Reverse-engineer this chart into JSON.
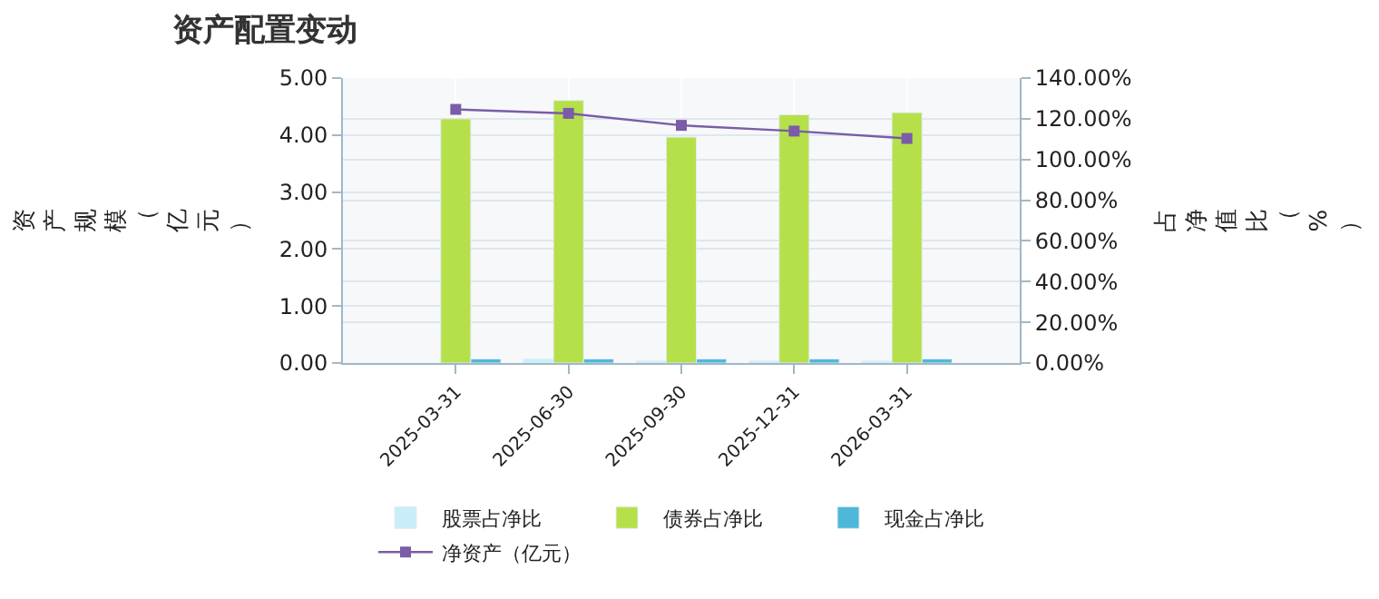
{
  "chart_data": {
    "type": "bar",
    "title": "资产配置变动",
    "ylabel": "资产规模（亿元）",
    "y2label": "占净值比（%）",
    "categories": [
      "2025-03-31",
      "2025-06-30",
      "2025-09-30",
      "2025-12-31",
      "2026-03-31"
    ],
    "series": [
      {
        "name": "股票占净比",
        "axis": "y2",
        "color": "#c9eefa",
        "values": [
          null,
          2,
          1,
          1,
          1
        ]
      },
      {
        "name": "债券占净比",
        "axis": "y2",
        "color": "#b5e04a",
        "values": [
          120,
          129,
          111,
          122,
          123
        ]
      },
      {
        "name": "现金占净比",
        "axis": "y2",
        "color": "#4fb8da",
        "values": [
          2,
          2,
          2,
          2,
          2
        ]
      },
      {
        "name": "净资产（亿元）",
        "type": "line",
        "axis": "y",
        "color": "#7a5ca8",
        "marker": "square",
        "values": [
          4.45,
          4.38,
          4.17,
          4.07,
          3.94
        ]
      }
    ],
    "ylim": [
      0,
      5
    ],
    "yticks": [
      {
        "value": 0,
        "label": "0.00"
      },
      {
        "value": 1,
        "label": "1.00"
      },
      {
        "value": 2,
        "label": "2.00"
      },
      {
        "value": 3,
        "label": "3.00"
      },
      {
        "value": 4,
        "label": "4.00"
      },
      {
        "value": 5,
        "label": "5.00"
      }
    ],
    "y2lim": [
      0,
      140
    ],
    "y2ticks": [
      {
        "value": 0,
        "label": "0.00%"
      },
      {
        "value": 20,
        "label": "20.00%"
      },
      {
        "value": 40,
        "label": "40.00%"
      },
      {
        "value": 60,
        "label": "60.00%"
      },
      {
        "value": 80,
        "label": "80.00%"
      },
      {
        "value": 100,
        "label": "100.00%"
      },
      {
        "value": 120,
        "label": "120.00%"
      },
      {
        "value": 140,
        "label": "140.00%"
      }
    ],
    "grid": true,
    "legend": "bottom"
  }
}
